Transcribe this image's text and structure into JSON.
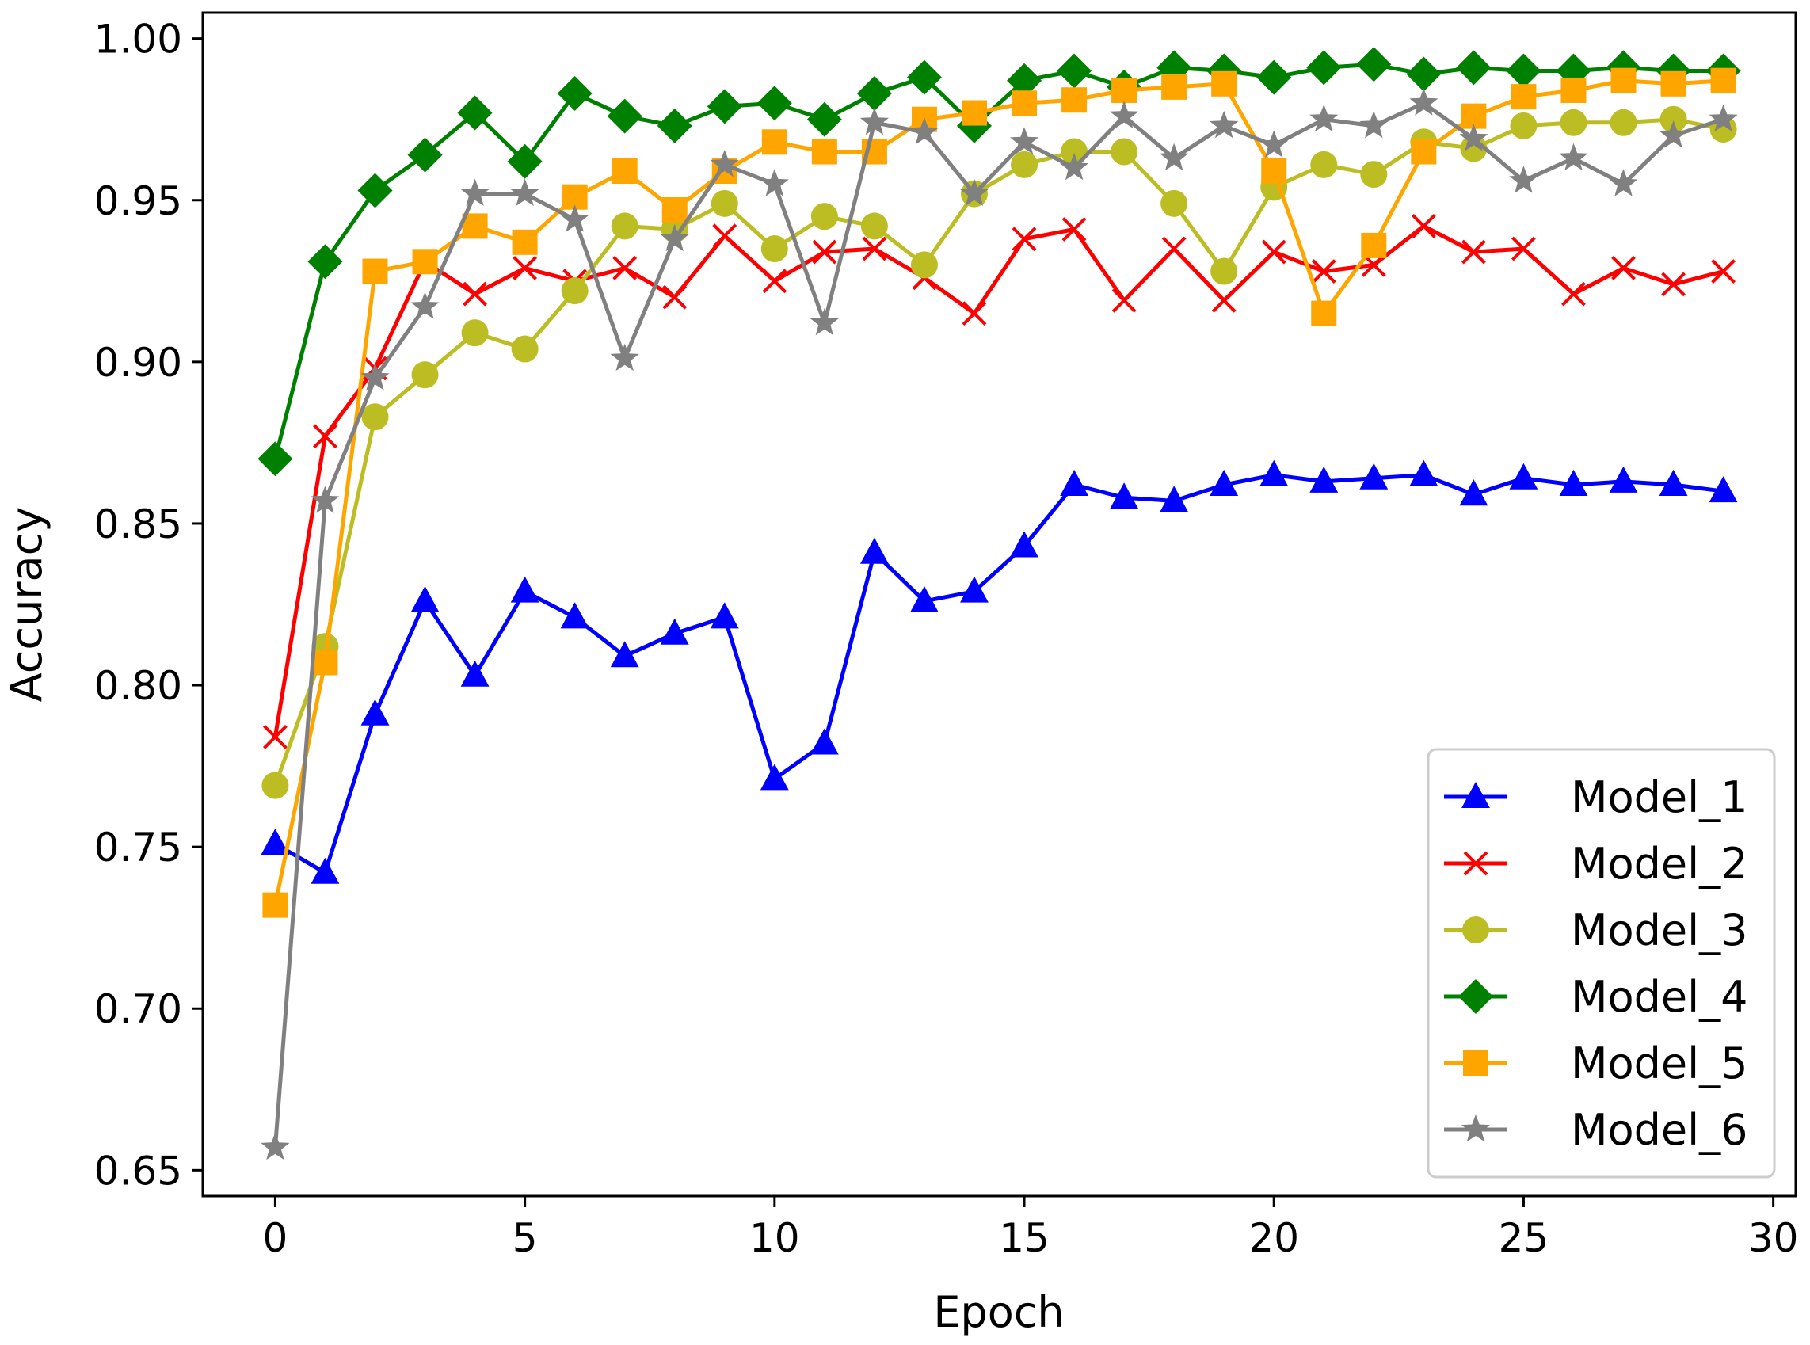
{
  "chart_data": {
    "type": "line",
    "title": "",
    "xlabel": "Epoch",
    "ylabel": "Accuracy",
    "xlim": [
      -1.45,
      30.45
    ],
    "ylim": [
      0.642,
      1.008
    ],
    "xticks": [
      0,
      5,
      10,
      15,
      20,
      25,
      30
    ],
    "xtick_labels": [
      "0",
      "5",
      "10",
      "15",
      "20",
      "25",
      "30"
    ],
    "yticks": [
      0.65,
      0.7,
      0.75,
      0.8,
      0.85,
      0.9,
      0.95,
      1.0
    ],
    "ytick_labels": [
      "0.65",
      "0.70",
      "0.75",
      "0.80",
      "0.85",
      "0.90",
      "0.95",
      "1.00"
    ],
    "grid": false,
    "legend_position": "lower-right",
    "x": [
      0,
      1,
      2,
      3,
      4,
      5,
      6,
      7,
      8,
      9,
      10,
      11,
      12,
      13,
      14,
      15,
      16,
      17,
      18,
      19,
      20,
      21,
      22,
      23,
      24,
      25,
      26,
      27,
      28,
      29
    ],
    "series": [
      {
        "name": "Model_1",
        "color": "#0000ff",
        "marker": "triangle",
        "values": [
          0.751,
          0.742,
          0.791,
          0.826,
          0.803,
          0.829,
          0.821,
          0.809,
          0.816,
          0.821,
          0.771,
          0.782,
          0.841,
          0.826,
          0.829,
          0.843,
          0.862,
          0.858,
          0.857,
          0.862,
          0.865,
          0.863,
          0.864,
          0.865,
          0.859,
          0.864,
          0.862,
          0.863,
          0.862,
          0.86
        ]
      },
      {
        "name": "Model_2",
        "color": "#ff0000",
        "marker": "x",
        "values": [
          0.784,
          0.877,
          0.898,
          0.931,
          0.921,
          0.929,
          0.925,
          0.929,
          0.92,
          0.939,
          0.925,
          0.934,
          0.935,
          0.926,
          0.915,
          0.938,
          0.941,
          0.919,
          0.935,
          0.919,
          0.934,
          0.928,
          0.93,
          0.942,
          0.934,
          0.935,
          0.921,
          0.929,
          0.924,
          0.928
        ]
      },
      {
        "name": "Model_3",
        "color": "#bcbd22",
        "marker": "circle",
        "values": [
          0.769,
          0.812,
          0.883,
          0.896,
          0.909,
          0.904,
          0.922,
          0.942,
          0.941,
          0.949,
          0.935,
          0.945,
          0.942,
          0.93,
          0.952,
          0.961,
          0.965,
          0.965,
          0.949,
          0.928,
          0.954,
          0.961,
          0.958,
          0.968,
          0.966,
          0.973,
          0.974,
          0.974,
          0.975,
          0.972
        ]
      },
      {
        "name": "Model_4",
        "color": "#008000",
        "marker": "diamond",
        "values": [
          0.87,
          0.931,
          0.953,
          0.964,
          0.977,
          0.962,
          0.983,
          0.976,
          0.973,
          0.979,
          0.98,
          0.975,
          0.983,
          0.988,
          0.973,
          0.987,
          0.99,
          0.985,
          0.991,
          0.99,
          0.988,
          0.991,
          0.992,
          0.989,
          0.991,
          0.99,
          0.99,
          0.991,
          0.99,
          0.99
        ]
      },
      {
        "name": "Model_5",
        "color": "#ffa500",
        "marker": "square",
        "values": [
          0.732,
          0.807,
          0.928,
          0.931,
          0.942,
          0.937,
          0.951,
          0.959,
          0.947,
          0.959,
          0.968,
          0.965,
          0.965,
          0.975,
          0.977,
          0.98,
          0.981,
          0.984,
          0.985,
          0.986,
          0.959,
          0.915,
          0.936,
          0.965,
          0.976,
          0.982,
          0.984,
          0.987,
          0.986,
          0.987
        ]
      },
      {
        "name": "Model_6",
        "color": "#808080",
        "marker": "star",
        "values": [
          0.657,
          0.857,
          0.895,
          0.917,
          0.952,
          0.952,
          0.944,
          0.901,
          0.938,
          0.961,
          0.955,
          0.912,
          0.974,
          0.971,
          0.952,
          0.968,
          0.96,
          0.976,
          0.963,
          0.973,
          0.967,
          0.975,
          0.973,
          0.98,
          0.969,
          0.956,
          0.963,
          0.955,
          0.97,
          0.975
        ]
      }
    ]
  }
}
